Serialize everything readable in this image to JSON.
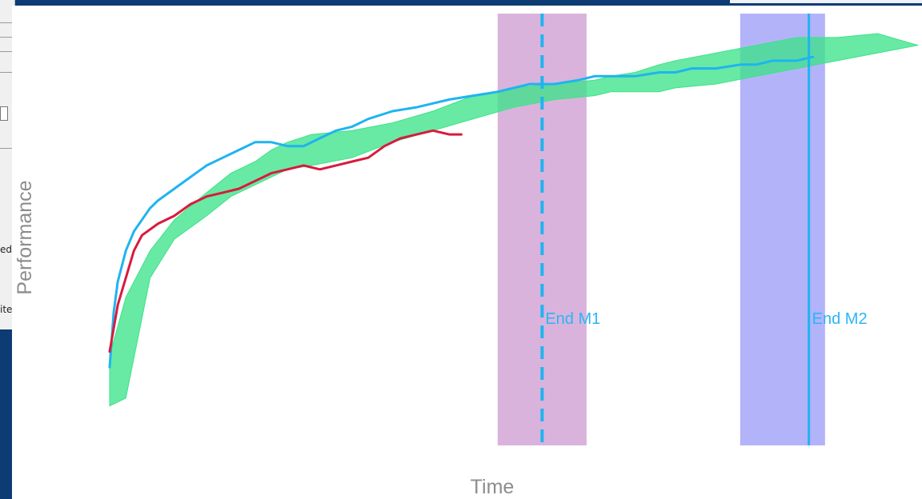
{
  "background_window": {
    "fragments": [
      "ed",
      "ite"
    ]
  },
  "chart_data": {
    "type": "line",
    "title": "",
    "xlabel": "Time",
    "ylabel": "Performance",
    "grid": false,
    "legend": "none",
    "axis_ticks": false,
    "xlim": [
      0,
      100
    ],
    "ylim": [
      0,
      100
    ],
    "series": [
      {
        "color": "#1eb4f0",
        "x": [
          0,
          0.5,
          1,
          2,
          3,
          4,
          5,
          6,
          8,
          10,
          12,
          14,
          16,
          18,
          20,
          22,
          24,
          26,
          28,
          30,
          32,
          35,
          38,
          40,
          42,
          45,
          48,
          50,
          52,
          55,
          58,
          60,
          62,
          65,
          68,
          70,
          72,
          75,
          78,
          80,
          82,
          85,
          87
        ],
        "y": [
          14,
          28,
          36,
          44,
          49,
          52,
          55,
          57,
          60,
          63,
          66,
          68,
          70,
          72,
          72,
          71,
          71,
          73,
          75,
          76,
          78,
          80,
          81,
          82,
          83,
          84,
          85,
          86,
          87,
          87,
          88,
          89,
          89,
          89,
          90,
          90,
          91,
          91,
          92,
          92,
          93,
          93,
          94
        ]
      },
      {
        "color": "#d81b3c",
        "x": [
          0,
          1,
          2,
          3,
          4,
          6,
          8,
          10,
          12,
          14,
          16,
          18,
          20,
          22,
          24,
          26,
          28,
          30,
          32,
          34,
          36,
          38,
          40,
          42,
          43.5
        ],
        "y": [
          18,
          30,
          37,
          44,
          48,
          51,
          53,
          56,
          58,
          59,
          60,
          62,
          64,
          65,
          66,
          65,
          66,
          67,
          68,
          71,
          73,
          74,
          75,
          74,
          74
        ]
      }
    ],
    "bands": [
      {
        "color": "#3ee38a",
        "x": [
          0,
          2,
          5,
          8,
          12,
          15,
          18,
          20,
          22,
          25,
          30,
          35,
          40,
          45,
          50,
          55,
          60,
          62,
          65,
          68,
          70,
          75,
          80,
          85,
          90,
          95,
          100
        ],
        "upper": [
          17,
          32,
          44,
          52,
          59,
          64,
          67,
          70,
          72,
          74,
          75,
          77,
          80,
          84,
          86,
          87,
          88,
          89,
          90,
          92,
          93,
          95,
          97,
          99,
          99,
          100,
          97
        ],
        "lower": [
          4,
          6,
          37,
          47,
          53,
          58,
          61,
          63,
          65,
          66,
          68,
          72,
          75,
          78,
          81,
          83,
          84,
          85,
          85,
          85,
          86,
          87,
          89,
          91,
          93,
          95,
          97
        ]
      }
    ],
    "regions": [
      {
        "x_start": 48,
        "x_end": 59,
        "color": "#d9b3dc"
      },
      {
        "x_start": 78,
        "x_end": 88.5,
        "color": "#b3b3fa"
      }
    ],
    "vlines": [
      {
        "x": 53.5,
        "label": "End M1",
        "style": "dashed",
        "color": "#1eb4f0"
      },
      {
        "x": 86.5,
        "label": "End M2",
        "style": "solid",
        "color": "#1eb4f0"
      }
    ]
  }
}
